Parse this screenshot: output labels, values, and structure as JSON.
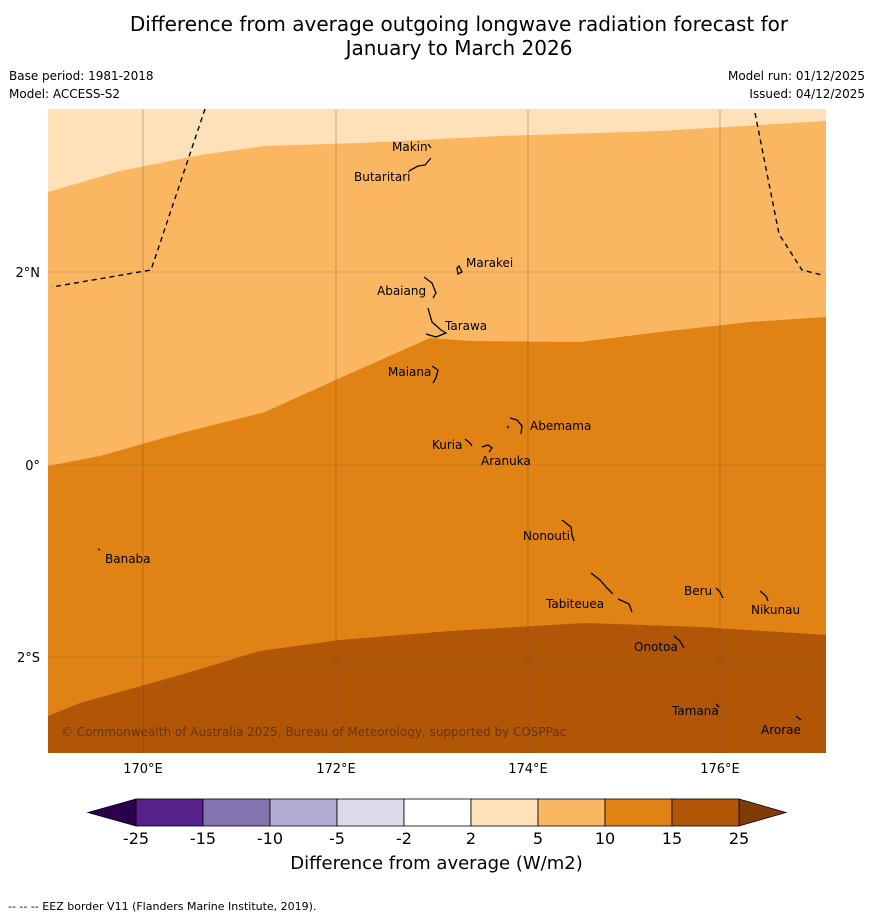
{
  "title": {
    "line1": "Difference from average outgoing longwave radiation forecast for",
    "line2": "January to March 2026"
  },
  "meta": {
    "base_period": "Base period: 1981-2018",
    "model": "Model: ACCESS-S2",
    "model_run": "Model run: 01/12/2025",
    "issued": "Issued: 04/12/2025"
  },
  "map": {
    "lat_labels": [
      "2°N",
      "0°",
      "2°S"
    ],
    "lon_labels": [
      "170°E",
      "172°E",
      "174°E",
      "176°E"
    ],
    "copyright": "© Commonwealth of Australia 2025, Bureau of Meteorology, supported by COSPPac",
    "islands": [
      {
        "name": "Makin"
      },
      {
        "name": "Butaritari"
      },
      {
        "name": "Marakei"
      },
      {
        "name": "Abaiang"
      },
      {
        "name": "Tarawa"
      },
      {
        "name": "Maiana"
      },
      {
        "name": "Abemama"
      },
      {
        "name": "Kuria"
      },
      {
        "name": "Aranuka"
      },
      {
        "name": "Nonouti"
      },
      {
        "name": "Banaba"
      },
      {
        "name": "Tabiteuea"
      },
      {
        "name": "Beru"
      },
      {
        "name": "Nikunau"
      },
      {
        "name": "Onotoa"
      },
      {
        "name": "Tamana"
      },
      {
        "name": "Arorae"
      }
    ]
  },
  "colorbar": {
    "title": "Difference from average (W/m2)",
    "ticks": [
      "-25",
      "-15",
      "-10",
      "-5",
      "-2",
      "2",
      "5",
      "10",
      "15",
      "25"
    ],
    "colors": [
      "#56218b",
      "#8374b0",
      "#b3abd4",
      "#dadaeb",
      "#ffffff",
      "#fee1b8",
      "#fbb662",
      "#e08314",
      "#b15607"
    ],
    "extend_low_color": "#2d004b",
    "extend_high_color": "#7f3b08"
  },
  "footnote": "--  --  -- EEZ border V11 (Flanders Marine Institute, 2019)."
}
